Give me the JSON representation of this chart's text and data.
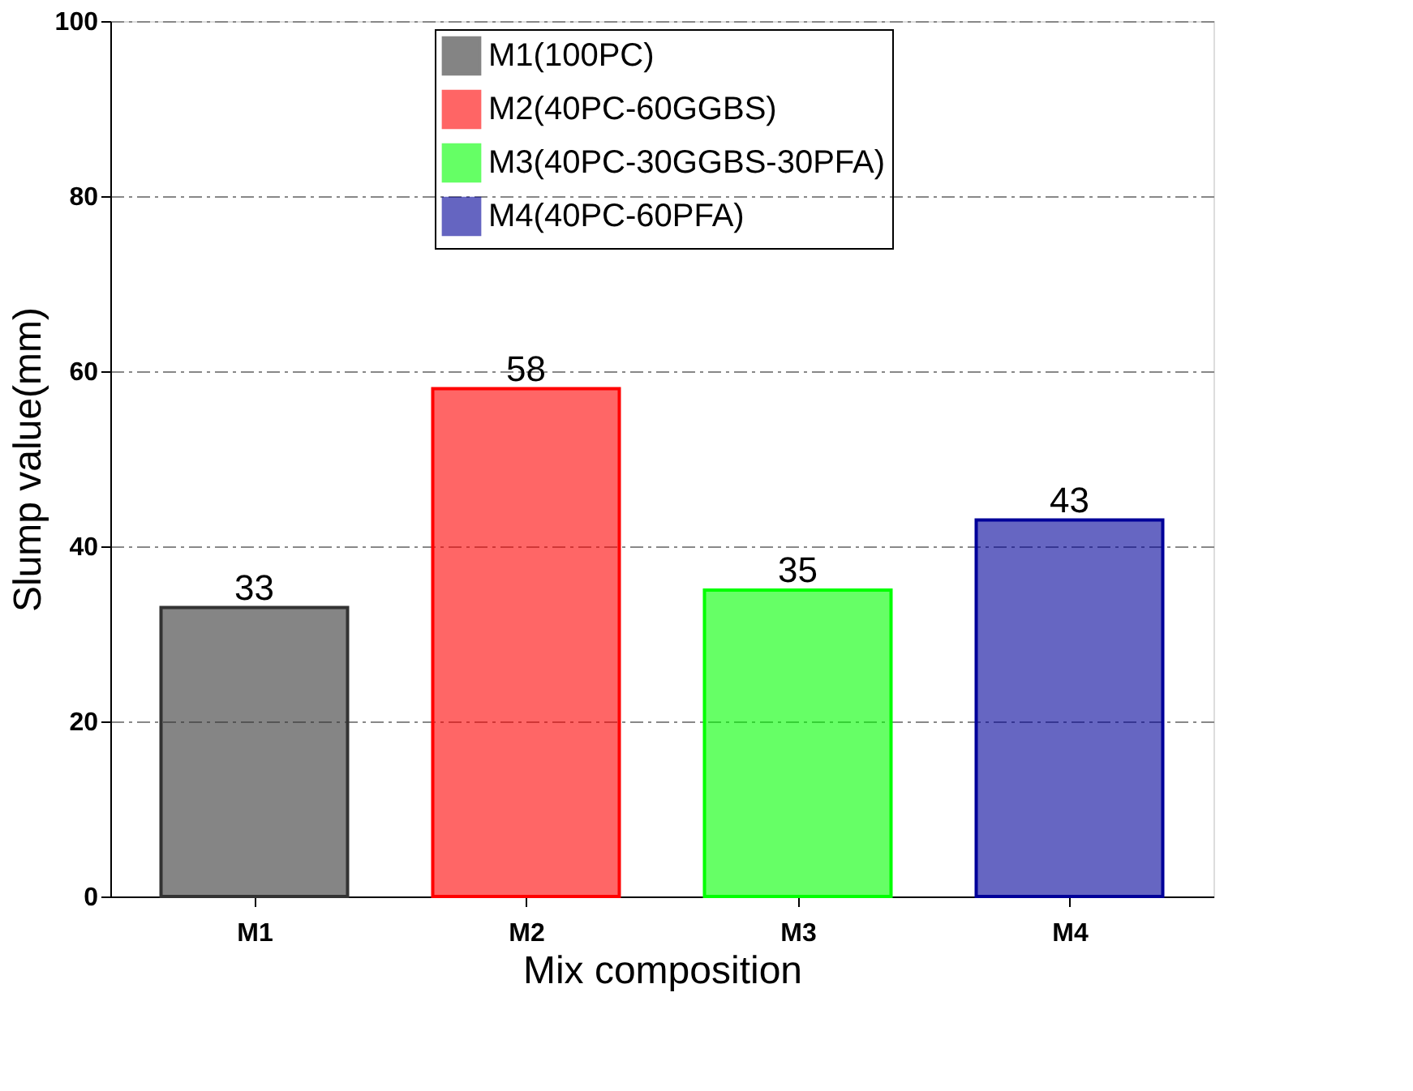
{
  "chart_data": {
    "type": "bar",
    "xlabel": "Mix composition",
    "ylabel": "Slump value(mm)",
    "categories": [
      "M1",
      "M2",
      "M3",
      "M4"
    ],
    "series": [
      {
        "name": "M1(100PC)",
        "color": "#333333",
        "values": [
          33,
          null,
          null,
          null
        ]
      },
      {
        "name": "M2(40PC-60GGBS)",
        "color": "#ff0000",
        "values": [
          null,
          58,
          null,
          null
        ]
      },
      {
        "name": "M3(40PC-30GGBS-30PFA)",
        "color": "#00ff00",
        "values": [
          null,
          null,
          35,
          null
        ]
      },
      {
        "name": "M4(40PC-60PFA)",
        "color": "#000099",
        "values": [
          null,
          null,
          null,
          43
        ]
      }
    ],
    "ylim": [
      0,
      100
    ],
    "yticks": [
      0,
      20,
      40,
      60,
      80,
      100
    ],
    "grid": "y",
    "legend": "top",
    "data_labels": true
  }
}
